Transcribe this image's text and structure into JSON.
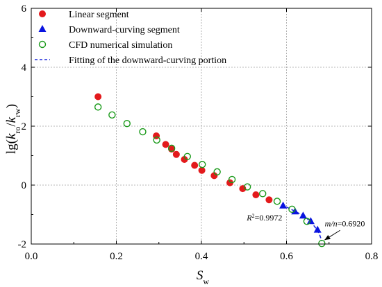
{
  "chart_data": {
    "type": "scatter",
    "xlim": [
      0.0,
      0.8
    ],
    "ylim": [
      -2,
      6
    ],
    "x_ticks": [
      "0.0",
      "0.2",
      "0.4",
      "0.6",
      "0.8"
    ],
    "y_ticks": [
      "-2",
      "0",
      "2",
      "4",
      "6"
    ],
    "xlabel": {
      "main": "S",
      "sub": "w"
    },
    "ylabel": {
      "pre": "lg(",
      "k1": "k",
      "sub1": "ro",
      "slash": "/",
      "k2": "k",
      "sub2": "rw",
      "post": ")"
    },
    "grid": true,
    "grid_style": "dotted",
    "legend_position": "upper-left",
    "series": [
      {
        "name": "Linear segment",
        "marker": "filled-circle",
        "color": "#e31a1c",
        "points": [
          [
            0.157,
            3.0
          ],
          [
            0.294,
            1.67
          ],
          [
            0.316,
            1.38
          ],
          [
            0.33,
            1.22
          ],
          [
            0.341,
            1.04
          ],
          [
            0.36,
            0.87
          ],
          [
            0.384,
            0.67
          ],
          [
            0.401,
            0.5
          ],
          [
            0.43,
            0.32
          ],
          [
            0.467,
            0.08
          ],
          [
            0.497,
            -0.12
          ],
          [
            0.528,
            -0.33
          ],
          [
            0.559,
            -0.5
          ]
        ]
      },
      {
        "name": "Downward-curving segment",
        "marker": "filled-triangle",
        "color": "#0a14e0",
        "points": [
          [
            0.592,
            -0.7
          ],
          [
            0.62,
            -0.9
          ],
          [
            0.639,
            -1.04
          ],
          [
            0.657,
            -1.23
          ],
          [
            0.673,
            -1.52
          ]
        ]
      },
      {
        "name": "CFD numerical simulation",
        "marker": "open-circle",
        "color": "#1a9a1a",
        "points": [
          [
            0.157,
            2.65
          ],
          [
            0.19,
            2.38
          ],
          [
            0.225,
            2.09
          ],
          [
            0.262,
            1.81
          ],
          [
            0.295,
            1.53
          ],
          [
            0.33,
            1.25
          ],
          [
            0.367,
            0.97
          ],
          [
            0.402,
            0.7
          ],
          [
            0.437,
            0.45
          ],
          [
            0.472,
            0.19
          ],
          [
            0.508,
            -0.06
          ],
          [
            0.544,
            -0.29
          ],
          [
            0.578,
            -0.55
          ],
          [
            0.613,
            -0.82
          ],
          [
            0.648,
            -1.23
          ],
          [
            0.683,
            -1.98
          ]
        ]
      },
      {
        "name": "Fitting of the downward-curving portion",
        "style": "dashed-line",
        "color": "#1e2adc",
        "points": [
          [
            0.588,
            -0.67
          ],
          [
            0.605,
            -0.78
          ],
          [
            0.62,
            -0.89
          ],
          [
            0.635,
            -1.0
          ],
          [
            0.648,
            -1.13
          ],
          [
            0.66,
            -1.3
          ],
          [
            0.67,
            -1.48
          ],
          [
            0.677,
            -1.65
          ],
          [
            0.683,
            -1.9
          ]
        ]
      }
    ],
    "annotations": {
      "r2": {
        "pre": "R",
        "sup": "2",
        "post": "=0.9972",
        "at": [
          0.59,
          -1.1
        ]
      },
      "mn": {
        "text": "m/n",
        "post": "=0.6920",
        "at": [
          0.69,
          -1.3
        ],
        "arrow_to": [
          0.683,
          -1.98
        ]
      }
    }
  }
}
